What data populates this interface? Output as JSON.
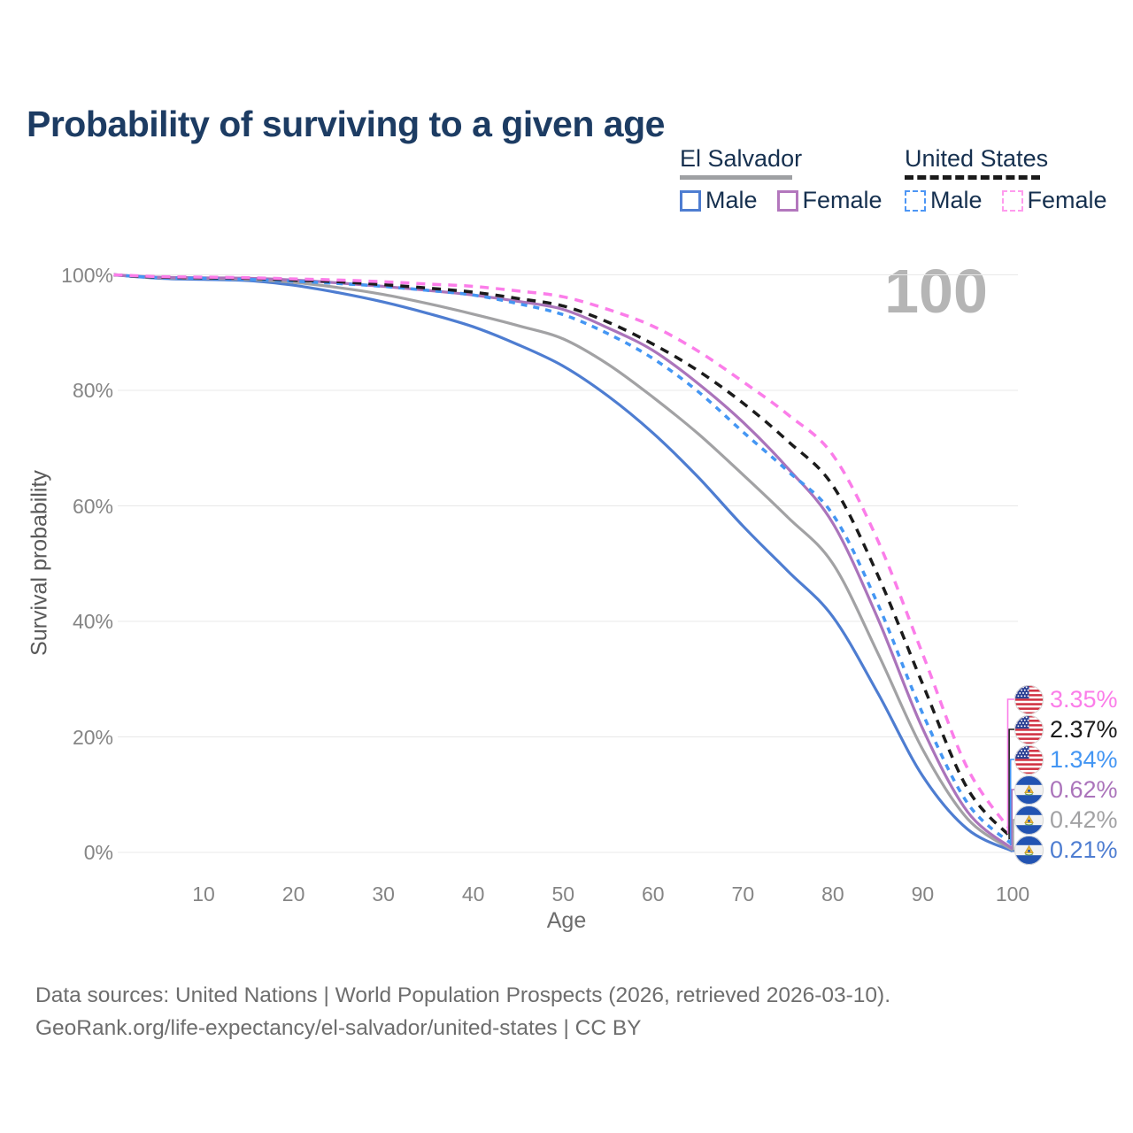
{
  "title": "Probability of surviving to a given age",
  "watermark_age": "100",
  "legend": {
    "groups": [
      {
        "label": "El Salvador",
        "underline_style": "solid",
        "underline_color": "#9ea0a3",
        "items": [
          {
            "label": "Male",
            "color": "#4e7dd1",
            "dashed": false
          },
          {
            "label": "Female",
            "color": "#b377bd",
            "dashed": false
          }
        ]
      },
      {
        "label": "United States",
        "underline_style": "dashed",
        "underline_color": "#1a1a1a",
        "items": [
          {
            "label": "Male",
            "color": "#4d96f5",
            "dashed": true
          },
          {
            "label": "Female",
            "color": "#ff9cee",
            "dashed": true
          }
        ]
      }
    ]
  },
  "chart_data": {
    "type": "line",
    "title": "Probability of surviving to a given age",
    "xlabel": "Age",
    "ylabel": "Survival probability",
    "xlim": [
      0,
      100
    ],
    "ylim": [
      0,
      100
    ],
    "grid": "horizontal",
    "legend_position": "top-right",
    "x_ticks": [
      {
        "label": "10",
        "value": 10
      },
      {
        "label": "20",
        "value": 20
      },
      {
        "label": "30",
        "value": 30
      },
      {
        "label": "40",
        "value": 40
      },
      {
        "label": "50",
        "value": 50
      },
      {
        "label": "60",
        "value": 60
      },
      {
        "label": "70",
        "value": 70
      },
      {
        "label": "80",
        "value": 80
      },
      {
        "label": "90",
        "value": 90
      },
      {
        "label": "100",
        "value": 100
      }
    ],
    "y_ticks": [
      {
        "label": "0%",
        "value": 0
      },
      {
        "label": "20%",
        "value": 20
      },
      {
        "label": "40%",
        "value": 40
      },
      {
        "label": "60%",
        "value": 60
      },
      {
        "label": "80%",
        "value": 80
      },
      {
        "label": "100%",
        "value": 100
      }
    ],
    "x": [
      0,
      5,
      10,
      15,
      20,
      25,
      30,
      35,
      40,
      45,
      50,
      55,
      60,
      65,
      70,
      75,
      80,
      85,
      90,
      95,
      100
    ],
    "series": [
      {
        "id": "sv-male",
        "country": "El Salvador",
        "sex": "Male",
        "color": "#4e7dd1",
        "dash": null,
        "flag": "el-salvador-flag",
        "end_label": "0.21%",
        "values": [
          100,
          99.4,
          99.2,
          99.0,
          98.2,
          96.9,
          95.3,
          93.3,
          91.0,
          87.9,
          84.2,
          79.0,
          72.6,
          65.0,
          56.5,
          48.7,
          40.8,
          27.6,
          13.2,
          4.0,
          0.21
        ]
      },
      {
        "id": "sv-both",
        "country": "El Salvador",
        "sex": "Both sexes",
        "color": "#a2a2a4",
        "dash": null,
        "flag": "el-salvador-flag",
        "end_label": "0.42%",
        "values": [
          100,
          99.5,
          99.4,
          99.2,
          98.7,
          97.8,
          96.6,
          95.0,
          93.2,
          91.2,
          88.9,
          84.5,
          78.8,
          72.5,
          65.4,
          58.0,
          50.0,
          34.5,
          17.8,
          5.8,
          0.42
        ]
      },
      {
        "id": "sv-female",
        "country": "El Salvador",
        "sex": "Female",
        "color": "#ab74bb",
        "dash": null,
        "flag": "el-salvador-flag",
        "end_label": "0.62%",
        "values": [
          100,
          99.6,
          99.5,
          99.4,
          99.1,
          98.6,
          98.0,
          97.3,
          96.5,
          95.4,
          94.0,
          90.8,
          86.9,
          81.2,
          74.5,
          66.5,
          57.0,
          40.5,
          21.4,
          7.0,
          0.62
        ]
      },
      {
        "id": "us-male",
        "country": "United States",
        "sex": "Male",
        "color": "#4496f3",
        "dash": "7 7",
        "flag": "united-states-flag",
        "end_label": "1.34%",
        "values": [
          100,
          99.5,
          99.4,
          99.2,
          98.9,
          98.5,
          98.0,
          97.3,
          96.5,
          95.0,
          93.1,
          89.8,
          85.5,
          79.8,
          72.8,
          66.0,
          58.5,
          43.0,
          24.0,
          8.5,
          1.34
        ]
      },
      {
        "id": "us-both",
        "country": "United States",
        "sex": "Both sexes",
        "color": "#1b1b1b",
        "dash": "10 8",
        "flag": "united-states-flag",
        "end_label": "2.37%",
        "values": [
          100,
          99.6,
          99.5,
          99.4,
          99.1,
          98.8,
          98.3,
          97.7,
          97.0,
          95.9,
          94.6,
          91.8,
          88.0,
          83.4,
          77.8,
          71.2,
          63.5,
          48.0,
          29.1,
          11.0,
          2.37
        ]
      },
      {
        "id": "us-female",
        "country": "United States",
        "sex": "Female",
        "color": "#fb7de9",
        "dash": "10 8",
        "flag": "united-states-flag",
        "end_label": "3.35%",
        "values": [
          100,
          99.7,
          99.6,
          99.5,
          99.3,
          99.1,
          98.8,
          98.4,
          98.0,
          97.2,
          96.2,
          94.0,
          91.1,
          86.8,
          81.5,
          75.8,
          68.8,
          54.0,
          34.3,
          14.5,
          3.35
        ]
      }
    ],
    "end_labels": [
      {
        "value": "3.35%",
        "series": "us-female"
      },
      {
        "value": "2.37%",
        "series": "us-both"
      },
      {
        "value": "1.34%",
        "series": "us-male"
      },
      {
        "value": "0.62%",
        "series": "sv-female"
      },
      {
        "value": "0.42%",
        "series": "sv-both"
      },
      {
        "value": "0.21%",
        "series": "sv-male"
      }
    ]
  },
  "footer": {
    "line1": "Data sources: United Nations | World Population Prospects (2026, retrieved 2026-03-10).",
    "line2": "GeoRank.org/life-expectancy/el-salvador/united-states | CC BY"
  }
}
